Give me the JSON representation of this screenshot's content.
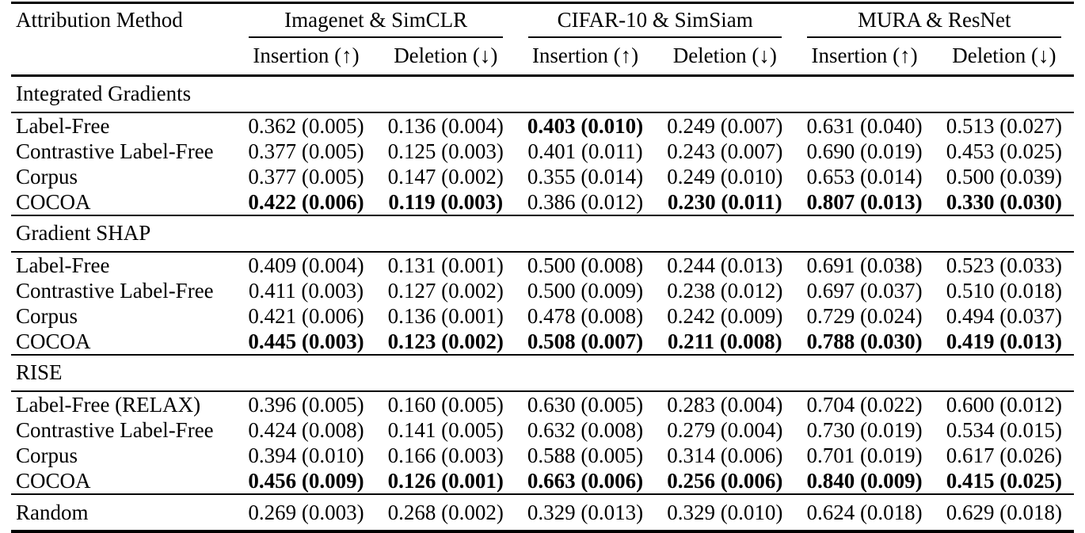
{
  "table": {
    "first_col_header": "Attribution Method",
    "groups": [
      {
        "label": "Imagenet & SimCLR"
      },
      {
        "label": "CIFAR-10 & SimSiam"
      },
      {
        "label": "MURA & ResNet"
      }
    ],
    "subheaders": [
      "Insertion (↑)",
      "Deletion (↓)",
      "Insertion (↑)",
      "Deletion (↓)",
      "Insertion (↑)",
      "Deletion (↓)"
    ],
    "sections": [
      {
        "title": "Integrated Gradients",
        "rows": [
          {
            "method": "Label-Free",
            "values": [
              "0.362 (0.005)",
              "0.136 (0.004)",
              "0.403 (0.010)",
              "0.249 (0.007)",
              "0.631 (0.040)",
              "0.513 (0.027)"
            ],
            "bold": [
              false,
              false,
              true,
              false,
              false,
              false
            ]
          },
          {
            "method": "Contrastive Label-Free",
            "values": [
              "0.377 (0.005)",
              "0.125 (0.003)",
              "0.401 (0.011)",
              "0.243 (0.007)",
              "0.690 (0.019)",
              "0.453 (0.025)"
            ],
            "bold": [
              false,
              false,
              false,
              false,
              false,
              false
            ]
          },
          {
            "method": "Corpus",
            "values": [
              "0.377 (0.005)",
              "0.147 (0.002)",
              "0.355 (0.014)",
              "0.249 (0.010)",
              "0.653 (0.014)",
              "0.500 (0.039)"
            ],
            "bold": [
              false,
              false,
              false,
              false,
              false,
              false
            ]
          },
          {
            "method": "COCOA",
            "values": [
              "0.422 (0.006)",
              "0.119 (0.003)",
              "0.386 (0.012)",
              "0.230 (0.011)",
              "0.807 (0.013)",
              "0.330 (0.030)"
            ],
            "bold": [
              true,
              true,
              false,
              true,
              true,
              true
            ]
          }
        ]
      },
      {
        "title": "Gradient SHAP",
        "rows": [
          {
            "method": "Label-Free",
            "values": [
              "0.409 (0.004)",
              "0.131 (0.001)",
              "0.500 (0.008)",
              "0.244 (0.013)",
              "0.691 (0.038)",
              "0.523 (0.033)"
            ],
            "bold": [
              false,
              false,
              false,
              false,
              false,
              false
            ]
          },
          {
            "method": "Contrastive Label-Free",
            "values": [
              "0.411 (0.003)",
              "0.127 (0.002)",
              "0.500 (0.009)",
              "0.238 (0.012)",
              "0.697 (0.037)",
              "0.510 (0.018)"
            ],
            "bold": [
              false,
              false,
              false,
              false,
              false,
              false
            ]
          },
          {
            "method": "Corpus",
            "values": [
              "0.421 (0.006)",
              "0.136 (0.001)",
              "0.478 (0.008)",
              "0.242 (0.009)",
              "0.729 (0.024)",
              "0.494 (0.037)"
            ],
            "bold": [
              false,
              false,
              false,
              false,
              false,
              false
            ]
          },
          {
            "method": "COCOA",
            "values": [
              "0.445 (0.003)",
              "0.123 (0.002)",
              "0.508 (0.007)",
              "0.211 (0.008)",
              "0.788 (0.030)",
              "0.419 (0.013)"
            ],
            "bold": [
              true,
              true,
              true,
              true,
              true,
              true
            ]
          }
        ]
      },
      {
        "title": "RISE",
        "rows": [
          {
            "method": "Label-Free (RELAX)",
            "values": [
              "0.396 (0.005)",
              "0.160 (0.005)",
              "0.630 (0.005)",
              "0.283 (0.004)",
              "0.704 (0.022)",
              "0.600 (0.012)"
            ],
            "bold": [
              false,
              false,
              false,
              false,
              false,
              false
            ]
          },
          {
            "method": "Contrastive Label-Free",
            "values": [
              "0.424 (0.008)",
              "0.141 (0.005)",
              "0.632 (0.008)",
              "0.279 (0.004)",
              "0.730 (0.019)",
              "0.534 (0.015)"
            ],
            "bold": [
              false,
              false,
              false,
              false,
              false,
              false
            ]
          },
          {
            "method": "Corpus",
            "values": [
              "0.394 (0.010)",
              "0.166 (0.003)",
              "0.588 (0.005)",
              "0.314 (0.006)",
              "0.701 (0.019)",
              "0.617 (0.026)"
            ],
            "bold": [
              false,
              false,
              false,
              false,
              false,
              false
            ]
          },
          {
            "method": "COCOA",
            "values": [
              "0.456 (0.009)",
              "0.126 (0.001)",
              "0.663 (0.006)",
              "0.256 (0.006)",
              "0.840 (0.009)",
              "0.415 (0.025)"
            ],
            "bold": [
              true,
              true,
              true,
              true,
              true,
              true
            ]
          }
        ]
      }
    ],
    "footer_row": {
      "method": "Random",
      "values": [
        "0.269 (0.003)",
        "0.268 (0.002)",
        "0.329 (0.013)",
        "0.329 (0.010)",
        "0.624 (0.018)",
        "0.629 (0.018)"
      ],
      "bold": [
        false,
        false,
        false,
        false,
        false,
        false
      ]
    }
  }
}
